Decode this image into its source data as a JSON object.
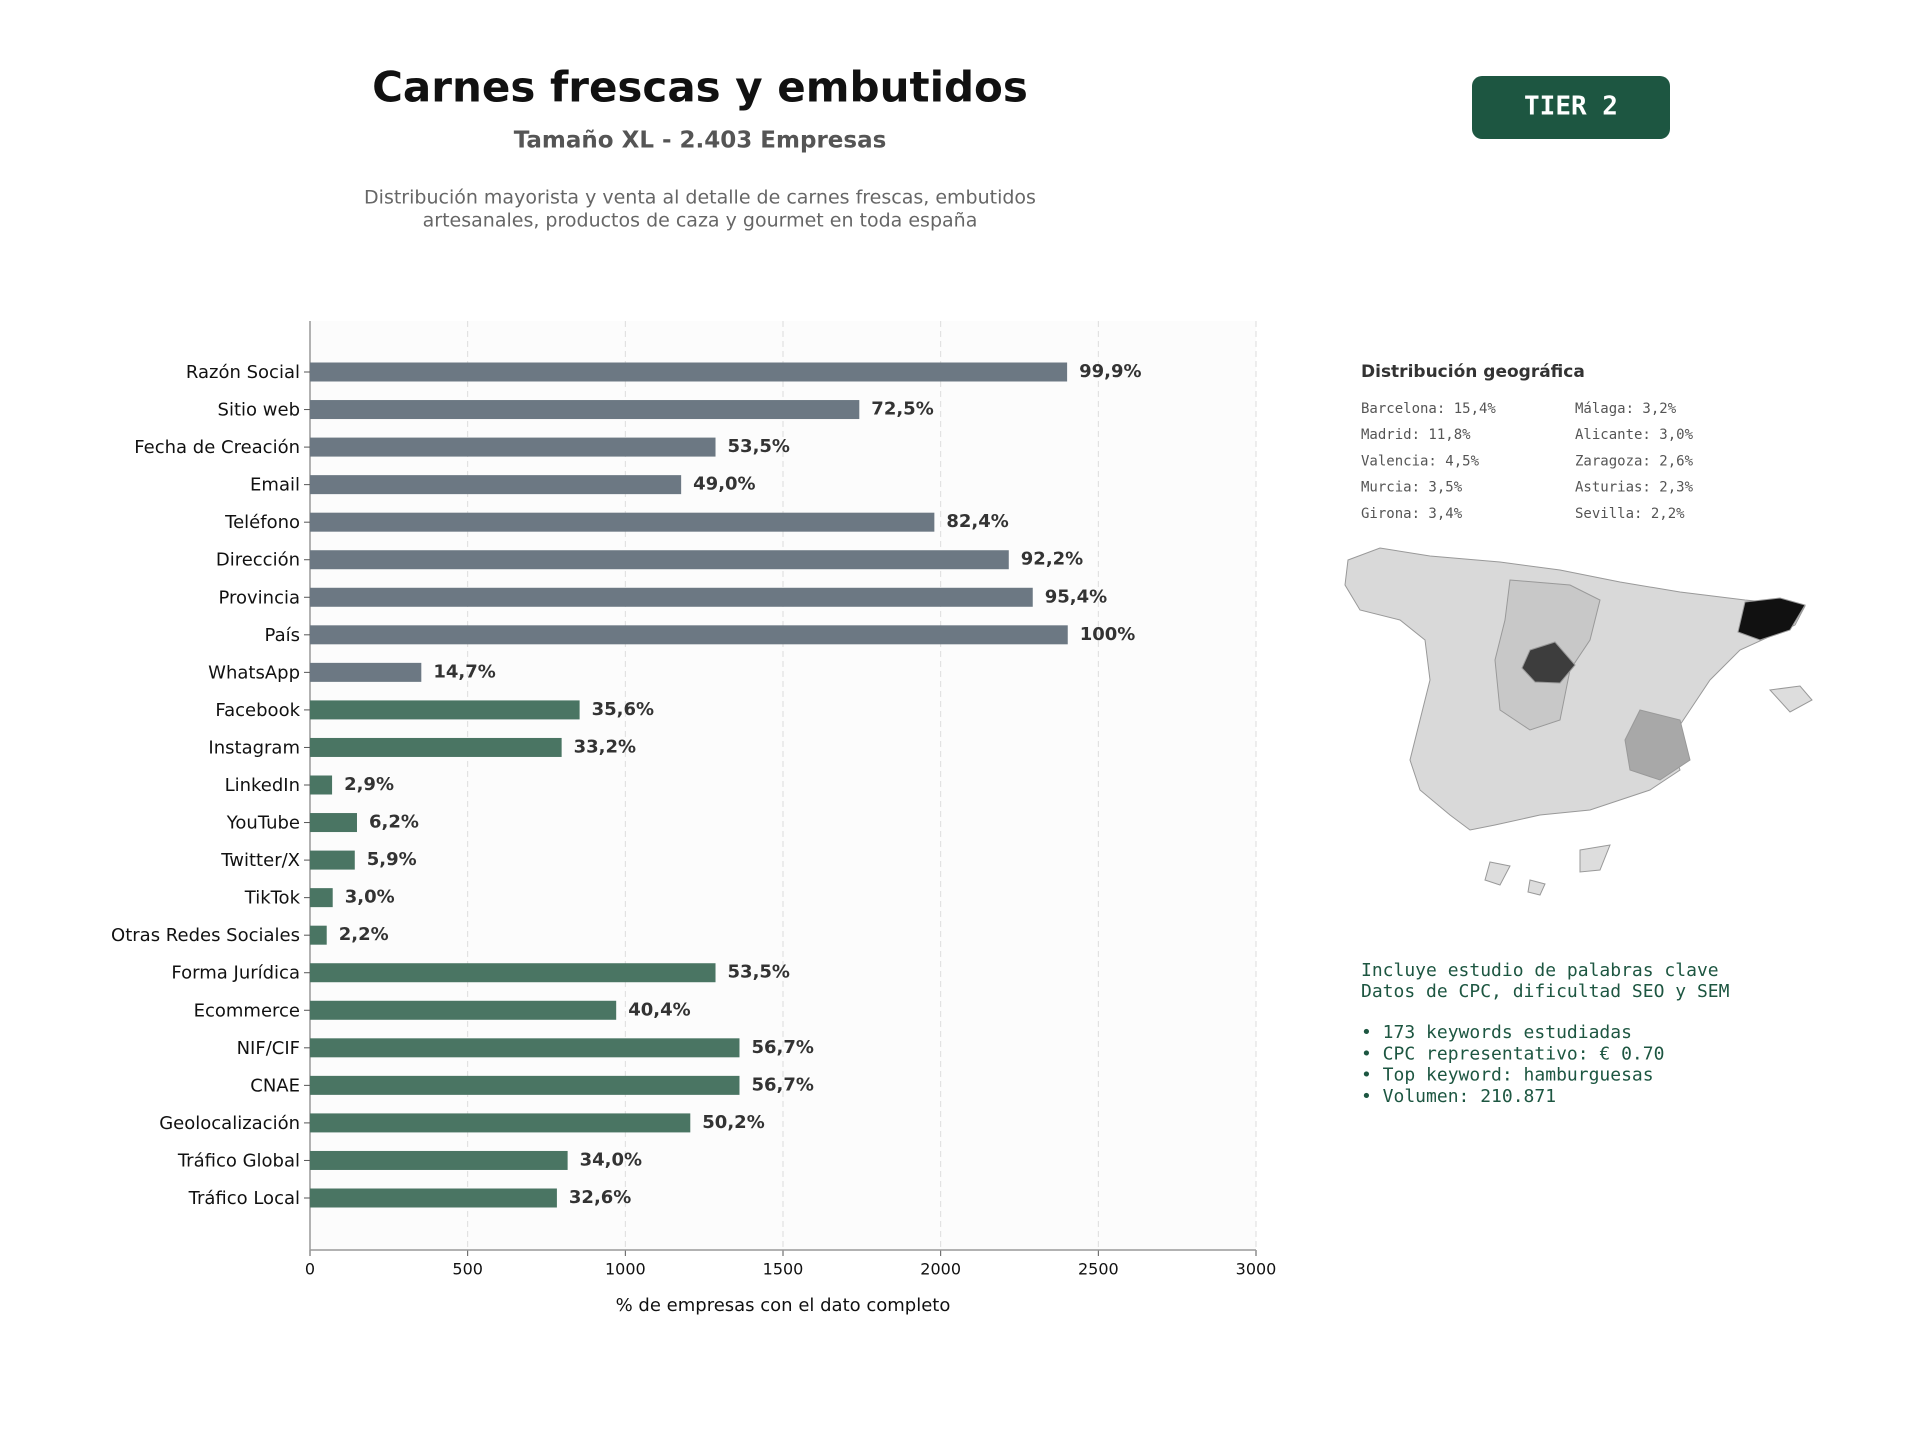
{
  "header": {
    "title": "Carnes frescas y embutidos",
    "subtitle": "Tamaño XL - 2.403 Empresas",
    "description": [
      "Distribución mayorista y venta al detalle de carnes frescas, embutidos",
      "artesanales, productos de caza y gourmet en toda españa"
    ]
  },
  "badge": "TIER 2",
  "chart_data": {
    "type": "barh",
    "categories": [
      "Razón Social",
      "Sitio web",
      "Fecha de Creación",
      "Email",
      "Teléfono",
      "Dirección",
      "Provincia",
      "País",
      "WhatsApp",
      "Facebook",
      "Instagram",
      "LinkedIn",
      "YouTube",
      "Twitter/X",
      "TikTok",
      "Otras Redes Sociales",
      "Forma Jurídica",
      "Ecommerce",
      "NIF/CIF",
      "CNAE",
      "Geolocalización",
      "Tráfico Global",
      "Tráfico Local"
    ],
    "values": [
      2401,
      1742,
      1286,
      1177,
      1980,
      2216,
      2292,
      2403,
      353,
      855,
      798,
      70,
      149,
      142,
      72,
      53,
      1286,
      971,
      1362,
      1362,
      1206,
      817,
      783
    ],
    "value_labels": [
      "99,9%",
      "72,5%",
      "53,5%",
      "49,0%",
      "82,4%",
      "92,2%",
      "95,4%",
      "100%",
      "14,7%",
      "35,6%",
      "33,2%",
      "2,9%",
      "6,2%",
      "5,9%",
      "3,0%",
      "2,2%",
      "53,5%",
      "40,4%",
      "56,7%",
      "56,7%",
      "50,2%",
      "34,0%",
      "32,6%"
    ],
    "colors": [
      "#6c7883",
      "#6c7883",
      "#6c7883",
      "#6c7883",
      "#6c7883",
      "#6c7883",
      "#6c7883",
      "#6c7883",
      "#6c7883",
      "#4a7563",
      "#4a7563",
      "#4a7563",
      "#4a7563",
      "#4a7563",
      "#4a7563",
      "#4a7563",
      "#4a7563",
      "#4a7563",
      "#4a7563",
      "#4a7563",
      "#4a7563",
      "#4a7563",
      "#4a7563"
    ],
    "xlabel": "% de empresas con el dato completo",
    "xlim": [
      0,
      3000
    ],
    "xticks": [
      0,
      500,
      1000,
      1500,
      2000,
      2500,
      3000
    ],
    "grid": true
  },
  "geo": {
    "title": "Distribución geográfica",
    "columns": [
      [
        "Barcelona: 15,4%",
        "Madrid: 11,8%",
        "Valencia: 4,5%",
        "Murcia: 3,5%",
        "Girona: 3,4%"
      ],
      [
        "Málaga: 3,2%",
        "Alicante: 3,0%",
        "Zaragoza: 2,6%",
        "Asturias: 2,3%",
        "Sevilla: 2,2%"
      ]
    ]
  },
  "keywords": {
    "lines": [
      "Incluye estudio de palabras clave",
      "Datos de CPC, dificultad SEO y SEM"
    ],
    "bullets": [
      "• 173 keywords estudiadas",
      "• CPC representativo: € 0.70",
      "• Top keyword: hamburguesas",
      "• Volumen: 210.871"
    ]
  }
}
